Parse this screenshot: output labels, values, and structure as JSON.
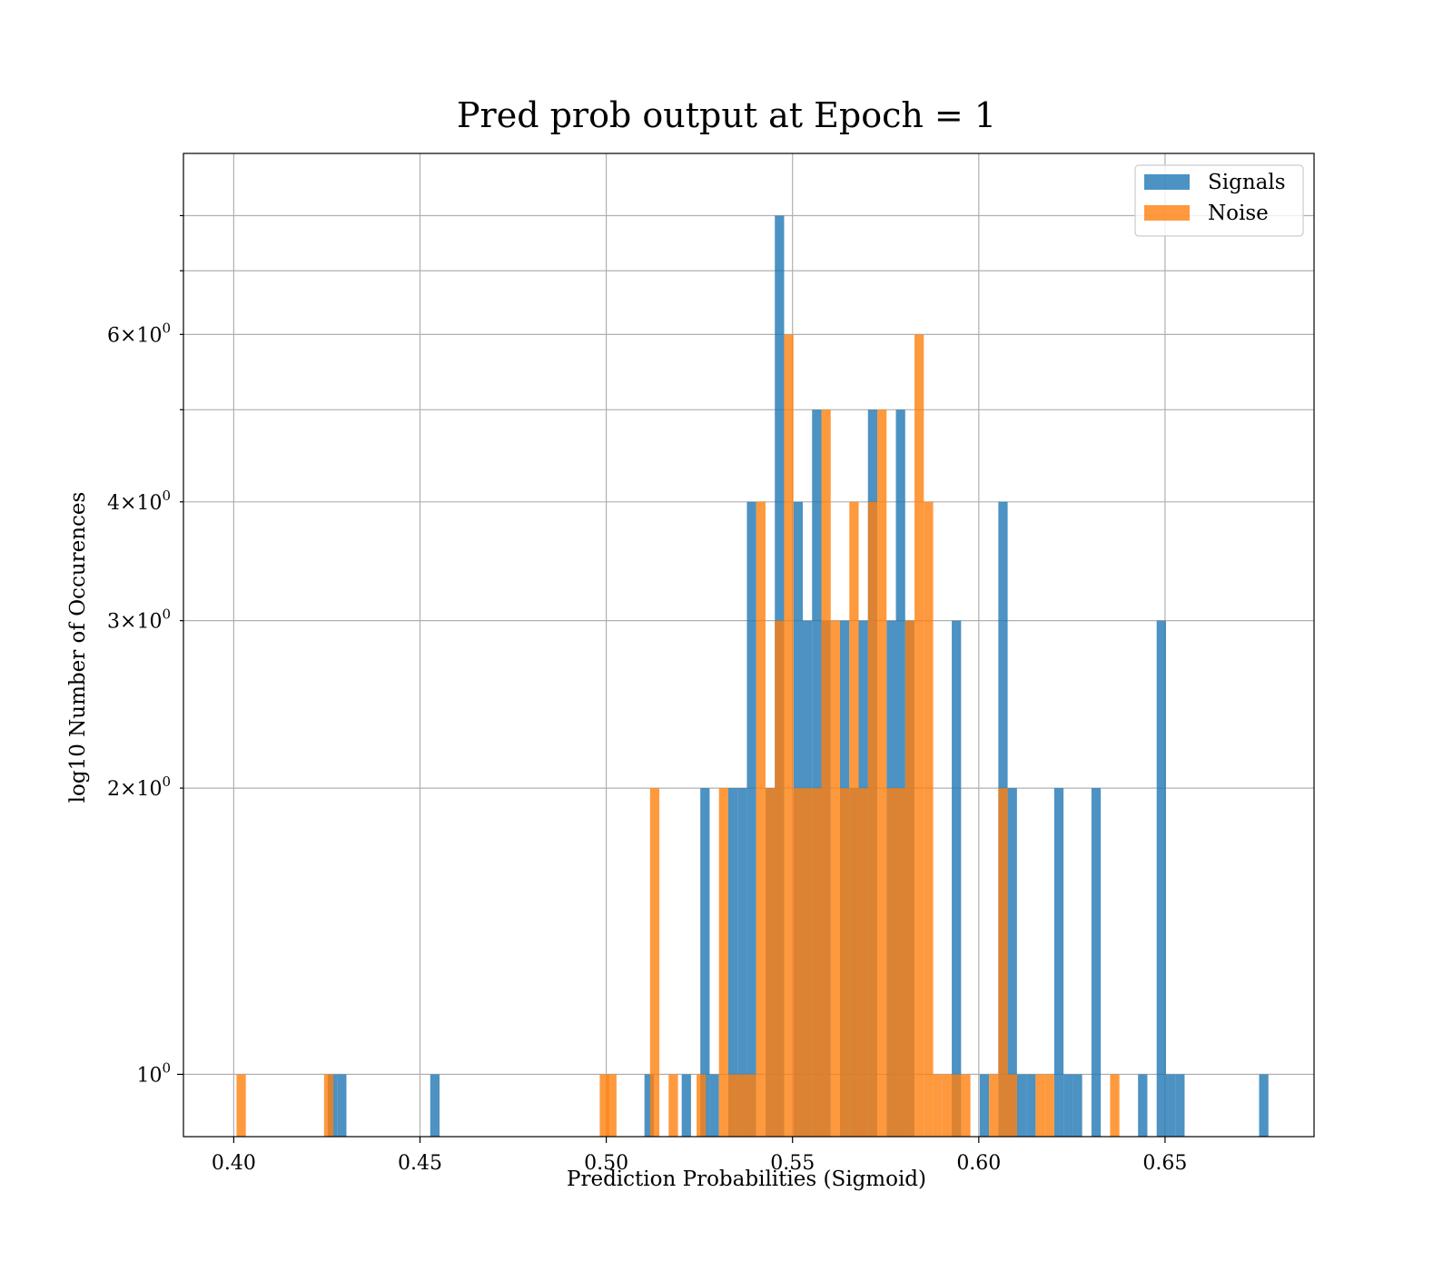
{
  "chart_data": {
    "type": "bar",
    "title": "Pred prob output at Epoch = 1",
    "xlabel": "Prediction Probabilities (Sigmoid)",
    "ylabel": "log10 Number of Occurences",
    "xlim": [
      0.3865,
      0.69
    ],
    "ylim": [
      0.86,
      9.3
    ],
    "yscale": "log",
    "grid": true,
    "legend": "top-right",
    "xticks": [
      0.4,
      0.45,
      0.5,
      0.55,
      0.6,
      0.65
    ],
    "xtick_labels": [
      "0.40",
      "0.45",
      "0.50",
      "0.55",
      "0.60",
      "0.65"
    ],
    "yticks_major": [
      1
    ],
    "yticks_major_labels": [
      {
        "base": "10",
        "exp": "0"
      }
    ],
    "yticks_minor": [
      2,
      3,
      4,
      5,
      6,
      7,
      8
    ],
    "yticks_minor_labels": [
      {
        "value": 2,
        "mant": "2",
        "base": "10",
        "exp": "0"
      },
      {
        "value": 3,
        "mant": "3",
        "base": "10",
        "exp": "0"
      },
      {
        "value": 4,
        "mant": "4",
        "base": "10",
        "exp": "0"
      },
      {
        "value": 6,
        "mant": "6",
        "base": "10",
        "exp": "0"
      }
    ],
    "series": [
      {
        "name": "Signals",
        "color": "#1f77b4",
        "alpha": 0.8,
        "bin_width": 0.0025,
        "bins": [
          {
            "x": 0.4265,
            "y": 1
          },
          {
            "x": 0.429,
            "y": 1
          },
          {
            "x": 0.454,
            "y": 1
          },
          {
            "x": 0.5115,
            "y": 1
          },
          {
            "x": 0.5215,
            "y": 1
          },
          {
            "x": 0.5265,
            "y": 2
          },
          {
            "x": 0.529,
            "y": 1
          },
          {
            "x": 0.534,
            "y": 2
          },
          {
            "x": 0.5365,
            "y": 2
          },
          {
            "x": 0.539,
            "y": 4
          },
          {
            "x": 0.544,
            "y": 2
          },
          {
            "x": 0.5465,
            "y": 8
          },
          {
            "x": 0.5515,
            "y": 4
          },
          {
            "x": 0.554,
            "y": 3
          },
          {
            "x": 0.5565,
            "y": 5
          },
          {
            "x": 0.559,
            "y": 3
          },
          {
            "x": 0.564,
            "y": 3
          },
          {
            "x": 0.5665,
            "y": 2
          },
          {
            "x": 0.569,
            "y": 3
          },
          {
            "x": 0.5715,
            "y": 5
          },
          {
            "x": 0.5765,
            "y": 3
          },
          {
            "x": 0.579,
            "y": 5
          },
          {
            "x": 0.5815,
            "y": 3
          },
          {
            "x": 0.594,
            "y": 3
          },
          {
            "x": 0.6015,
            "y": 1
          },
          {
            "x": 0.6065,
            "y": 4
          },
          {
            "x": 0.609,
            "y": 2
          },
          {
            "x": 0.6115,
            "y": 1
          },
          {
            "x": 0.614,
            "y": 1
          },
          {
            "x": 0.6215,
            "y": 2
          },
          {
            "x": 0.624,
            "y": 1
          },
          {
            "x": 0.6265,
            "y": 1
          },
          {
            "x": 0.6315,
            "y": 2
          },
          {
            "x": 0.644,
            "y": 1
          },
          {
            "x": 0.649,
            "y": 3
          },
          {
            "x": 0.6515,
            "y": 1
          },
          {
            "x": 0.654,
            "y": 1
          },
          {
            "x": 0.6765,
            "y": 1
          }
        ]
      },
      {
        "name": "Noise",
        "color": "#ff7f0e",
        "alpha": 0.8,
        "bin_width": 0.0025,
        "bins": [
          {
            "x": 0.402,
            "y": 1
          },
          {
            "x": 0.4255,
            "y": 1
          },
          {
            "x": 0.4995,
            "y": 1
          },
          {
            "x": 0.5015,
            "y": 1
          },
          {
            "x": 0.513,
            "y": 2
          },
          {
            "x": 0.518,
            "y": 1
          },
          {
            "x": 0.5255,
            "y": 1
          },
          {
            "x": 0.5315,
            "y": 2
          },
          {
            "x": 0.534,
            "y": 1
          },
          {
            "x": 0.5365,
            "y": 1
          },
          {
            "x": 0.539,
            "y": 1
          },
          {
            "x": 0.5415,
            "y": 4
          },
          {
            "x": 0.544,
            "y": 2
          },
          {
            "x": 0.5465,
            "y": 3
          },
          {
            "x": 0.549,
            "y": 6
          },
          {
            "x": 0.5515,
            "y": 2
          },
          {
            "x": 0.554,
            "y": 2
          },
          {
            "x": 0.5565,
            "y": 2
          },
          {
            "x": 0.559,
            "y": 5
          },
          {
            "x": 0.5615,
            "y": 3
          },
          {
            "x": 0.564,
            "y": 2
          },
          {
            "x": 0.5665,
            "y": 4
          },
          {
            "x": 0.569,
            "y": 2
          },
          {
            "x": 0.5715,
            "y": 4
          },
          {
            "x": 0.574,
            "y": 5
          },
          {
            "x": 0.5765,
            "y": 2
          },
          {
            "x": 0.579,
            "y": 2
          },
          {
            "x": 0.5815,
            "y": 3
          },
          {
            "x": 0.584,
            "y": 6
          },
          {
            "x": 0.5865,
            "y": 4
          },
          {
            "x": 0.589,
            "y": 1
          },
          {
            "x": 0.5915,
            "y": 1
          },
          {
            "x": 0.594,
            "y": 1
          },
          {
            "x": 0.5965,
            "y": 1
          },
          {
            "x": 0.604,
            "y": 1
          },
          {
            "x": 0.6065,
            "y": 2
          },
          {
            "x": 0.609,
            "y": 1
          },
          {
            "x": 0.6165,
            "y": 1
          },
          {
            "x": 0.619,
            "y": 1
          },
          {
            "x": 0.6365,
            "y": 1
          }
        ]
      }
    ]
  }
}
